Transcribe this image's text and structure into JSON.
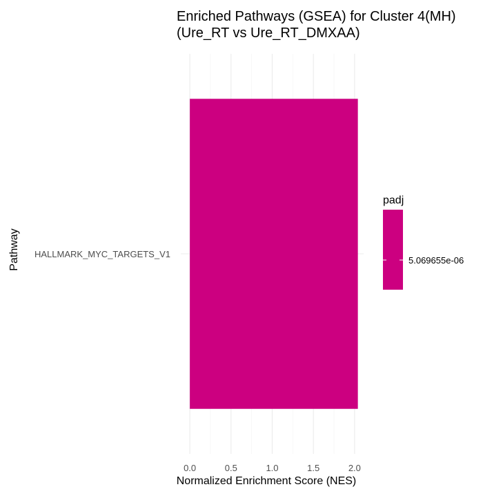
{
  "chart_data": {
    "type": "bar",
    "orientation": "horizontal",
    "title_lines": [
      "Enriched Pathways (GSEA) for Cluster 4(MH)",
      "(Ure_RT vs Ure_RT_DMXAA)"
    ],
    "xlabel": "Normalized Enrichment Score (NES)",
    "ylabel": "Pathway",
    "categories": [
      "HALLMARK_MYC_TARGETS_V1"
    ],
    "values": [
      2.04
    ],
    "xlim": [
      -0.11,
      2.11
    ],
    "xticks": [
      0.0,
      0.5,
      1.0,
      1.5,
      2.0
    ],
    "xtick_labels": [
      "0.0",
      "0.5",
      "1.0",
      "1.5",
      "2.0"
    ],
    "grid": true,
    "bar_color": "#CC0080",
    "legend": {
      "title": "padj",
      "placement": "right",
      "label": "5.069655e-06",
      "color": "#CC0080"
    }
  }
}
